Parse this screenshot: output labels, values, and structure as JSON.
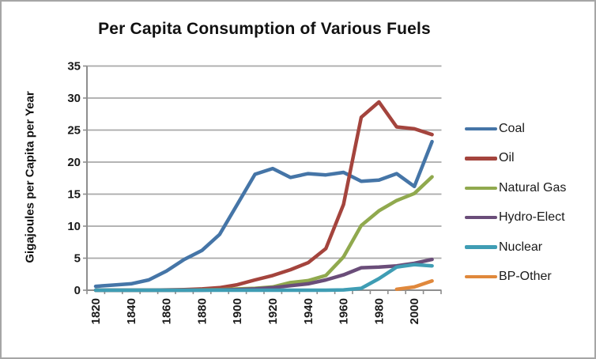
{
  "title": "Per Capita Consumption of Various Fuels",
  "y_axis": {
    "title": "Gigajoules per Capita per Year",
    "min": 0,
    "max": 35,
    "tick_step": 5
  },
  "x_axis": {
    "tick_years": [
      1820,
      1840,
      1860,
      1880,
      1900,
      1920,
      1940,
      1960,
      1980,
      2000
    ]
  },
  "chart_data": {
    "type": "line",
    "title": "Per Capita Consumption of Various Fuels",
    "xlabel": "",
    "ylabel": "Gigajoules per Capita per Year",
    "ylim": [
      0,
      35
    ],
    "grid": true,
    "legend_position": "right",
    "categories": [
      1820,
      1830,
      1840,
      1850,
      1860,
      1870,
      1880,
      1890,
      1900,
      1910,
      1920,
      1930,
      1940,
      1950,
      1960,
      1970,
      1980,
      1990,
      2000,
      2010
    ],
    "series": [
      {
        "name": "Coal",
        "color": "#4575a7",
        "values": [
          0.6,
          0.8,
          1.0,
          1.6,
          3.0,
          4.8,
          6.2,
          8.7,
          13.4,
          18.1,
          19.0,
          17.6,
          18.2,
          18.0,
          18.4,
          17.0,
          17.2,
          18.2,
          16.2,
          23.2
        ]
      },
      {
        "name": "Oil",
        "color": "#a4443d",
        "values": [
          0,
          0,
          0,
          0,
          0.05,
          0.1,
          0.2,
          0.4,
          0.85,
          1.6,
          2.3,
          3.2,
          4.3,
          6.5,
          13.4,
          27.0,
          29.4,
          25.5,
          25.2,
          24.3
        ]
      },
      {
        "name": "Natural Gas",
        "color": "#90a94e",
        "values": [
          0,
          0,
          0,
          0,
          0,
          0,
          0.05,
          0.1,
          0.2,
          0.3,
          0.5,
          1.2,
          1.5,
          2.3,
          5.2,
          10.1,
          12.4,
          14.0,
          15.1,
          17.7
        ]
      },
      {
        "name": "Hydro-Elect",
        "color": "#6a4d79",
        "values": [
          0,
          0,
          0,
          0,
          0,
          0,
          0,
          0.05,
          0.1,
          0.2,
          0.4,
          0.7,
          1.0,
          1.6,
          2.4,
          3.5,
          3.6,
          3.8,
          4.2,
          4.8
        ]
      },
      {
        "name": "Nuclear",
        "color": "#3f9db4",
        "values": [
          0,
          0,
          0,
          0,
          0,
          0,
          0,
          0,
          0,
          0,
          0,
          0,
          0,
          0,
          0.05,
          0.3,
          1.8,
          3.6,
          4.0,
          3.8
        ]
      },
      {
        "name": "BP-Other",
        "color": "#e0883c",
        "values": [
          null,
          null,
          null,
          null,
          null,
          null,
          null,
          null,
          null,
          null,
          null,
          null,
          null,
          null,
          null,
          null,
          null,
          0.15,
          0.5,
          1.45
        ]
      }
    ]
  }
}
